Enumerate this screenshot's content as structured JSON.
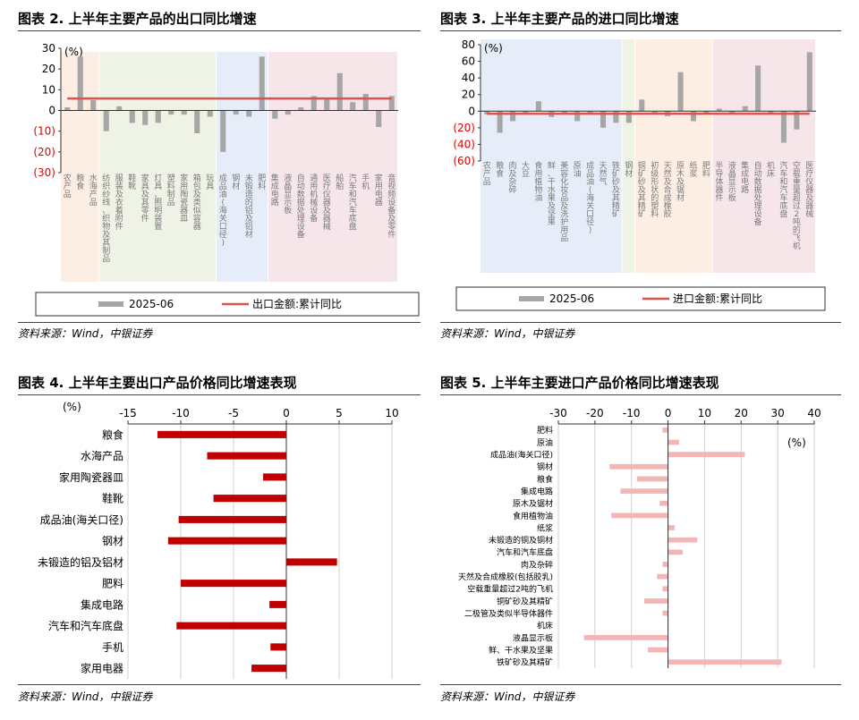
{
  "charts": {
    "c2": {
      "title": "图表 2. 上半年主要产品的出口同比增速",
      "source": "资料来源：Wind，中银证券",
      "unit": "(%)"
    },
    "c3": {
      "title": "图表 3. 上半年主要产品的进口同比增速",
      "source": "资料来源：Wind，中银证券",
      "unit": "(%)"
    },
    "c4": {
      "title": "图表 4. 上半年主要出口产品价格同比增速表现",
      "source": "资料来源：Wind，中银证券",
      "unit": "(%)"
    },
    "c5": {
      "title": "图表 5. 上半年主要进口产品价格同比增速表现",
      "source": "资料来源：Wind，中银证券",
      "unit": "(%)"
    }
  },
  "colors": {
    "bar_gray": "#a6a6a6",
    "line_red": "#d9534f",
    "bar_darkred": "#c00000",
    "bar_pink": "#f2b6b6",
    "neg_axis_red": "#e00000",
    "region_orange": "#fdeee3",
    "region_green": "#eef3e6",
    "region_blue": "#e7edf8",
    "region_pink": "#f6e6ea"
  },
  "chart_data": [
    {
      "id": "c2",
      "type": "bar",
      "categories": [
        "农产品",
        "粮食",
        "水海产品",
        "纺织纱线、织物及其制品",
        "服装及衣着附件",
        "鞋靴",
        "家具及其零件",
        "灯具、照明装置",
        "塑料制品",
        "家用陶瓷器皿",
        "箱包及类似容器",
        "玩具",
        "成品油(海关口径)",
        "钢材",
        "未锻造的铝及铝材",
        "肥料",
        "集成电路",
        "液晶显示板",
        "自动数据处理设备",
        "通用机械设备",
        "医疗仪器及器械",
        "船舶",
        "汽车和汽车底盘",
        "手机",
        "家用电器",
        "音视频设备及零件"
      ],
      "series": [
        {
          "name": "2025-06",
          "values": [
            1.5,
            26,
            5,
            -10,
            2,
            -6,
            -7,
            -6,
            -2,
            -2,
            -11,
            -3,
            -20,
            -2,
            -3,
            26,
            -4,
            -2,
            1.5,
            7,
            6,
            18,
            4,
            8,
            -8,
            7
          ]
        },
        {
          "name": "出口金额:累计同比",
          "values": [
            5.8,
            5.8,
            5.8,
            5.8,
            5.8,
            5.8,
            5.8,
            5.8,
            5.8,
            5.8,
            5.8,
            5.8,
            5.8,
            5.8,
            5.8,
            5.8,
            5.8,
            5.8,
            5.8,
            5.8,
            5.8,
            5.8,
            5.8,
            5.8,
            5.8,
            5.8
          ]
        }
      ],
      "ylim": [
        -30,
        30
      ],
      "yticks": [
        "(30)",
        "(20)",
        "(10)",
        "0",
        "10",
        "20",
        "30"
      ],
      "ytick_values": [
        -30,
        -20,
        -10,
        0,
        10,
        20,
        30
      ],
      "legend": "bottom"
    },
    {
      "id": "c3",
      "type": "bar",
      "categories": [
        "农产品",
        "粮食",
        "肉及杂碎",
        "大豆",
        "食用植物油",
        "鲜、干水果及坚果",
        "美容化妆品及洗护用品",
        "原油",
        "成品油(海关口径)",
        "天然气",
        "铁矿砂及其精矿",
        "钢材",
        "铜矿砂及其精矿",
        "初级形状的塑料",
        "天然及合成橡胶",
        "原木及锯材",
        "纸浆",
        "肥料",
        "半导体器件",
        "液晶显示板",
        "集成电路",
        "自动数据处理设备",
        "机床",
        "汽车和汽车底盘",
        "空载重量超过2吨的飞机",
        "医疗仪器及器械"
      ],
      "series": [
        {
          "name": "2025-06",
          "values": [
            -4,
            -26,
            -12,
            -2,
            12,
            -7,
            -3,
            -12,
            -3,
            -20,
            -14,
            -14,
            14,
            -3,
            -6,
            47,
            -12,
            -2,
            3,
            -3,
            6,
            55,
            -4,
            -38,
            -22,
            71
          ]
        },
        {
          "name": "进口金额:累计同比",
          "values": [
            -3,
            -3,
            -3,
            -3,
            -3,
            -3,
            -3,
            -3,
            -3,
            -3,
            -3,
            -3,
            -3,
            -3,
            -3,
            -3,
            -3,
            -3,
            -3,
            -3,
            -3,
            -3,
            -3,
            -3,
            -3,
            -3
          ]
        }
      ],
      "ylim": [
        -60,
        80
      ],
      "yticks": [
        "(60)",
        "(40)",
        "(20)",
        "0",
        "20",
        "40",
        "60",
        "80"
      ],
      "ytick_values": [
        -60,
        -40,
        -20,
        0,
        20,
        40,
        60,
        80
      ],
      "legend": "bottom"
    },
    {
      "id": "c4",
      "type": "bar",
      "orientation": "horizontal",
      "categories": [
        "粮食",
        "水海产品",
        "家用陶瓷器皿",
        "鞋靴",
        "成品油(海关口径)",
        "钢材",
        "未锻造的铝及铝材",
        "肥料",
        "集成电路",
        "汽车和汽车底盘",
        "手机",
        "家用电器"
      ],
      "values": [
        -12.2,
        -7.5,
        -2.2,
        -6.9,
        -10.2,
        -11.2,
        4.8,
        -10,
        -1.6,
        -10.4,
        -1.5,
        -3.3
      ],
      "xlim": [
        -15,
        10
      ],
      "xticks": [
        "-15",
        "-10",
        "-5",
        "0",
        "5",
        "10"
      ],
      "xtick_values": [
        -15,
        -10,
        -5,
        0,
        5,
        10
      ]
    },
    {
      "id": "c5",
      "type": "bar",
      "orientation": "horizontal",
      "categories": [
        "肥料",
        "原油",
        "成品油(海关口径)",
        "钢材",
        "粮食",
        "集成电路",
        "原木及锯材",
        "食用植物油",
        "纸浆",
        "未锻造的铜及铜材",
        "汽车和汽车底盘",
        "肉及杂碎",
        "天然及合成橡胶(包括胶乳)",
        "空载重量超过2吨的飞机",
        "铜矿砂及其精矿",
        "二极管及类似半导体器件",
        "机床",
        "液晶显示板",
        "鲜、干水果及坚果",
        "铁矿砂及其精矿"
      ],
      "values": [
        -1.5,
        3,
        21,
        -16,
        -8.5,
        -13,
        -2.3,
        -15.5,
        1.8,
        8,
        4,
        -1.5,
        -3,
        -1.5,
        -6.5,
        -1.5,
        0,
        -23,
        -5.5,
        31
      ],
      "xlim": [
        -30,
        40
      ],
      "xticks": [
        "-30",
        "-20",
        "-10",
        "0",
        "10",
        "20",
        "30",
        "40"
      ],
      "xtick_values": [
        -30,
        -20,
        -10,
        0,
        10,
        20,
        30,
        40
      ]
    }
  ]
}
